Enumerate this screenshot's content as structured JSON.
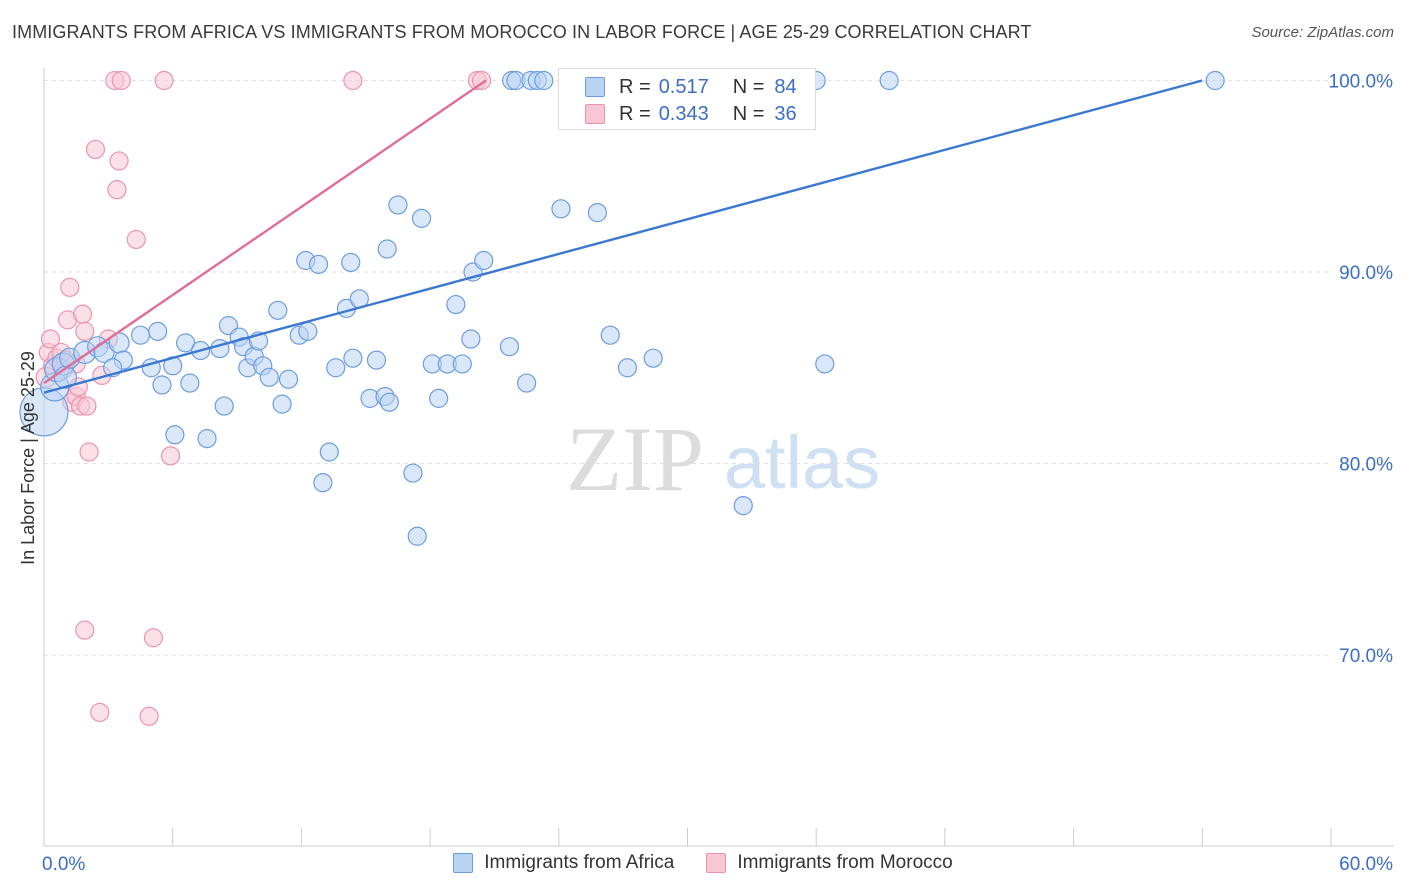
{
  "header": {
    "title": "IMMIGRANTS FROM AFRICA VS IMMIGRANTS FROM MOROCCO IN LABOR FORCE | AGE 25-29 CORRELATION CHART",
    "source": "Source: ZipAtlas.com"
  },
  "watermark": {
    "zip": "ZIP",
    "atlas": "atlas"
  },
  "stats": [
    {
      "r_label": "R =",
      "r_value": "0.517",
      "n_label": "N =",
      "n_value": "84"
    },
    {
      "r_label": "R =",
      "r_value": "0.343",
      "n_label": "N =",
      "n_value": "36"
    }
  ],
  "legend": [
    {
      "label": "Immigrants from Africa"
    },
    {
      "label": "Immigrants from Morocco"
    }
  ],
  "colors": {
    "africa_fill": "#b9d3f2",
    "africa_stroke": "#6c9de0",
    "africa_line": "#3b78d0",
    "morocco_fill": "#f9c6d4",
    "morocco_stroke": "#ea94ae",
    "morocco_line": "#e06e95",
    "tick_label": "#3b6fc4",
    "grid": "#e2e2e2"
  },
  "chart_data": {
    "type": "scatter",
    "title": "IMMIGRANTS FROM AFRICA VS IMMIGRANTS FROM MOROCCO IN LABOR FORCE | AGE 25-29 CORRELATION CHART",
    "xlabel": "",
    "ylabel": "In Labor Force | Age 25-29",
    "xlim": [
      0,
      60
    ],
    "ylim": [
      60,
      101
    ],
    "x_tick_labels": [
      "0.0%",
      "60.0%"
    ],
    "y_ticks": [
      70,
      80,
      90,
      100
    ],
    "y_tick_labels": [
      "70.0%",
      "80.0%",
      "90.0%",
      "100.0%"
    ],
    "x_minor_ticks": [
      6,
      12,
      18,
      24,
      30,
      36,
      42,
      48,
      54
    ],
    "series": [
      {
        "name": "Immigrants from Africa",
        "trend": [
          [
            0,
            83.7
          ],
          [
            54,
            100.0
          ]
        ],
        "points": [
          [
            0.0,
            82.7,
            24
          ],
          [
            0.5,
            84.0,
            14
          ],
          [
            0.6,
            84.9,
            12
          ],
          [
            0.9,
            85.2,
            11
          ],
          [
            1.0,
            84.5,
            11
          ],
          [
            1.2,
            85.5,
            10
          ],
          [
            1.9,
            85.8,
            11
          ],
          [
            2.5,
            86.1,
            10
          ],
          [
            2.8,
            85.8,
            10
          ],
          [
            3.5,
            86.3,
            10
          ],
          [
            3.7,
            85.4,
            9
          ],
          [
            3.2,
            85.0,
            9
          ],
          [
            4.5,
            86.7,
            9
          ],
          [
            5.0,
            85.0,
            9
          ],
          [
            5.3,
            86.9,
            9
          ],
          [
            5.5,
            84.1,
            9
          ],
          [
            6.1,
            81.5,
            9
          ],
          [
            6.0,
            85.1,
            9
          ],
          [
            6.6,
            86.3,
            9
          ],
          [
            6.8,
            84.2,
            9
          ],
          [
            7.3,
            85.9,
            9
          ],
          [
            7.6,
            81.3,
            9
          ],
          [
            8.2,
            86.0,
            9
          ],
          [
            8.4,
            83.0,
            9
          ],
          [
            8.6,
            87.2,
            9
          ],
          [
            9.1,
            86.6,
            9
          ],
          [
            9.3,
            86.1,
            9
          ],
          [
            9.5,
            85.0,
            9
          ],
          [
            9.8,
            85.6,
            9
          ],
          [
            10.0,
            86.4,
            9
          ],
          [
            10.2,
            85.1,
            9
          ],
          [
            10.5,
            84.5,
            9
          ],
          [
            10.9,
            88.0,
            9
          ],
          [
            11.1,
            83.1,
            9
          ],
          [
            11.4,
            84.4,
            9
          ],
          [
            11.9,
            86.7,
            9
          ],
          [
            12.2,
            90.6,
            9
          ],
          [
            12.3,
            86.9,
            9
          ],
          [
            12.8,
            90.4,
            9
          ],
          [
            13.3,
            80.6,
            9
          ],
          [
            13.6,
            85.0,
            9
          ],
          [
            13.0,
            79.0,
            9
          ],
          [
            14.1,
            88.1,
            9
          ],
          [
            14.3,
            90.5,
            9
          ],
          [
            14.7,
            88.6,
            9
          ],
          [
            15.2,
            83.4,
            9
          ],
          [
            15.5,
            85.4,
            9
          ],
          [
            15.9,
            83.5,
            9
          ],
          [
            16.1,
            83.2,
            9
          ],
          [
            16.5,
            93.5,
            9
          ],
          [
            17.2,
            79.5,
            9
          ],
          [
            17.4,
            76.2,
            9
          ],
          [
            17.6,
            92.8,
            9
          ],
          [
            18.1,
            85.2,
            9
          ],
          [
            18.4,
            83.4,
            9
          ],
          [
            18.8,
            85.2,
            9
          ],
          [
            19.2,
            88.3,
            9
          ],
          [
            19.5,
            85.2,
            9
          ],
          [
            20.0,
            90.0,
            9
          ],
          [
            20.5,
            90.6,
            9
          ],
          [
            19.9,
            86.5,
            9
          ],
          [
            21.7,
            86.1,
            9
          ],
          [
            22.5,
            84.2,
            9
          ],
          [
            21.8,
            100.0,
            9
          ],
          [
            22.0,
            100.0,
            9
          ],
          [
            22.7,
            100.0,
            9
          ],
          [
            23.0,
            100.0,
            9
          ],
          [
            23.3,
            100.0,
            9
          ],
          [
            24.1,
            93.3,
            9
          ],
          [
            25.6,
            100.0,
            9
          ],
          [
            25.8,
            93.1,
            9
          ],
          [
            26.4,
            86.7,
            9
          ],
          [
            27.0,
            100.0,
            9
          ],
          [
            27.2,
            85.0,
            9
          ],
          [
            28.4,
            85.5,
            9
          ],
          [
            30.1,
            100.0,
            9
          ],
          [
            31.6,
            100.0,
            9
          ],
          [
            36.0,
            100.0,
            9
          ],
          [
            32.6,
            77.8,
            9
          ],
          [
            36.4,
            85.2,
            9
          ],
          [
            39.4,
            100.0,
            9
          ],
          [
            54.6,
            100.0,
            9
          ],
          [
            14.4,
            85.5,
            9
          ],
          [
            16.0,
            91.2,
            9
          ]
        ]
      },
      {
        "name": "Immigrants from Morocco",
        "trend": [
          [
            0,
            84.2
          ],
          [
            20.6,
            100.0
          ]
        ],
        "points": [
          [
            0.1,
            84.5,
            10
          ],
          [
            0.2,
            85.8,
            9
          ],
          [
            0.3,
            86.5,
            9
          ],
          [
            0.4,
            85.1,
            9
          ],
          [
            0.6,
            85.5,
            9
          ],
          [
            0.8,
            85.8,
            9
          ],
          [
            0.9,
            84.9,
            9
          ],
          [
            1.0,
            85.4,
            9
          ],
          [
            1.1,
            87.5,
            9
          ],
          [
            1.2,
            89.2,
            9
          ],
          [
            1.3,
            83.2,
            9
          ],
          [
            1.5,
            83.5,
            9
          ],
          [
            1.6,
            84.0,
            9
          ],
          [
            1.7,
            83.0,
            9
          ],
          [
            1.8,
            87.8,
            9
          ],
          [
            1.9,
            86.9,
            9
          ],
          [
            2.0,
            83.0,
            9
          ],
          [
            1.9,
            71.3,
            9
          ],
          [
            2.1,
            80.6,
            9
          ],
          [
            2.4,
            96.4,
            9
          ],
          [
            2.6,
            67.0,
            9
          ],
          [
            2.7,
            84.6,
            9
          ],
          [
            3.0,
            86.5,
            9
          ],
          [
            3.3,
            100.0,
            9
          ],
          [
            3.4,
            94.3,
            9
          ],
          [
            3.5,
            95.8,
            9
          ],
          [
            3.6,
            100.0,
            9
          ],
          [
            4.3,
            91.7,
            9
          ],
          [
            4.9,
            66.8,
            9
          ],
          [
            5.1,
            70.9,
            9
          ],
          [
            5.6,
            100.0,
            9
          ],
          [
            5.9,
            80.4,
            9
          ],
          [
            14.4,
            100.0,
            9
          ],
          [
            20.2,
            100.0,
            9
          ],
          [
            20.4,
            100.0,
            9
          ],
          [
            1.5,
            85.2,
            9
          ]
        ]
      }
    ]
  }
}
